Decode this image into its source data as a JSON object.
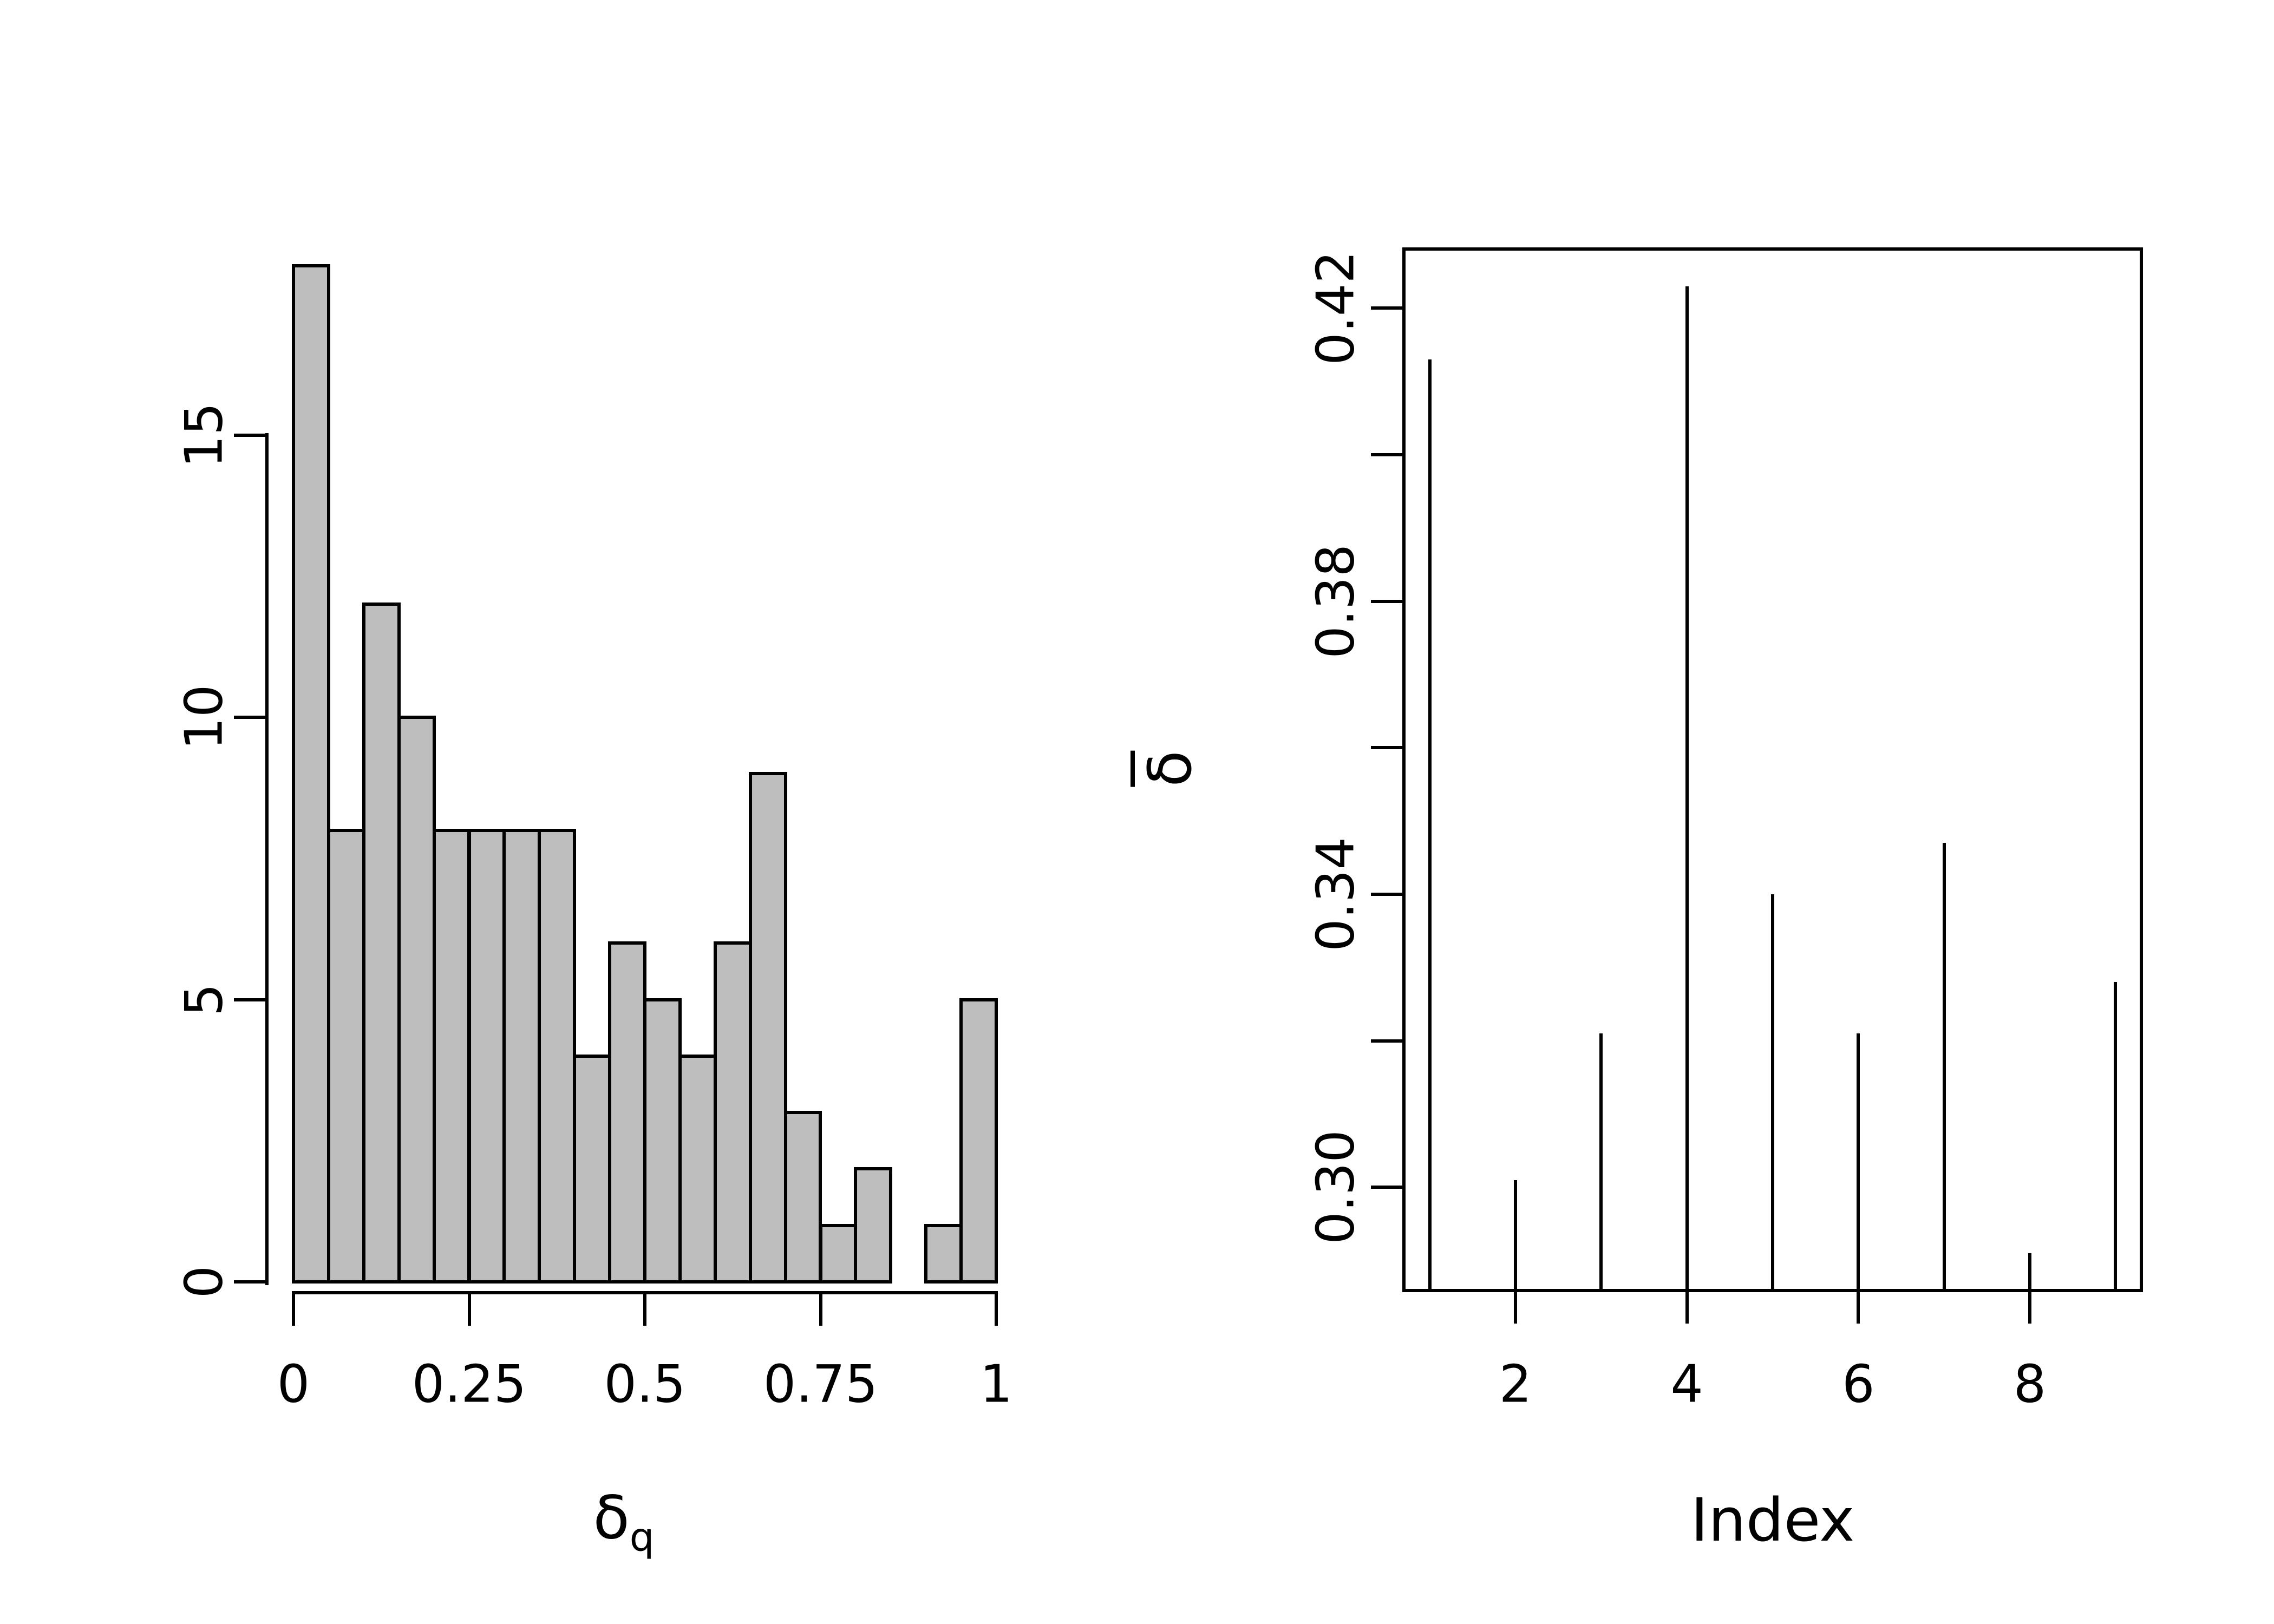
{
  "figure": {
    "background": "#ffffff",
    "line_color": "#000000",
    "bar_fill": "#bebebe",
    "bar_edge": "#000000"
  },
  "chart_data": [
    {
      "type": "bar",
      "subtype": "histogram",
      "title": "",
      "xlabel_main": "δ",
      "xlabel_sub": "q",
      "ylabel": "",
      "bin_start": 0,
      "bin_width": 0.05,
      "counts": [
        18,
        8,
        12,
        10,
        8,
        8,
        8,
        8,
        4,
        6,
        5,
        4,
        6,
        9,
        3,
        1,
        2,
        0,
        1,
        5
      ],
      "xlim": [
        0,
        1
      ],
      "ylim": [
        0,
        18
      ],
      "x_ticks": [
        0,
        0.25,
        0.5,
        0.75,
        1
      ],
      "x_tick_labels": [
        "0",
        "0.25",
        "0.5",
        "0.75",
        "1"
      ],
      "y_ticks": [
        0,
        5,
        10,
        15
      ],
      "y_tick_labels": [
        "0",
        "5",
        "10",
        "15"
      ],
      "grid": false,
      "bar_fill": "#bebebe",
      "bar_edge": "#000000"
    },
    {
      "type": "line",
      "subtype": "vertical-spikes",
      "title": "",
      "xlabel": "Index",
      "ylabel_main": "δ",
      "ylabel_has_overbar": true,
      "x": [
        1,
        2,
        3,
        4,
        5,
        6,
        7,
        8,
        9
      ],
      "values": [
        0.413,
        0.301,
        0.321,
        0.423,
        0.34,
        0.321,
        0.347,
        0.291,
        0.328
      ],
      "xlim_displayed": [
        0.68,
        9.32
      ],
      "ylim_displayed": [
        0.2857,
        0.4283
      ],
      "x_ticks": [
        2,
        4,
        6,
        8
      ],
      "x_tick_labels": [
        "2",
        "4",
        "6",
        "8"
      ],
      "y_ticks": [
        0.3,
        0.32,
        0.34,
        0.36,
        0.38,
        0.4,
        0.42
      ],
      "y_tick_labeled": [
        0.3,
        0.34,
        0.38,
        0.42
      ],
      "y_tick_labels": [
        "0.30",
        "0.34",
        "0.38",
        "0.42"
      ],
      "grid": false,
      "legend": null
    }
  ]
}
